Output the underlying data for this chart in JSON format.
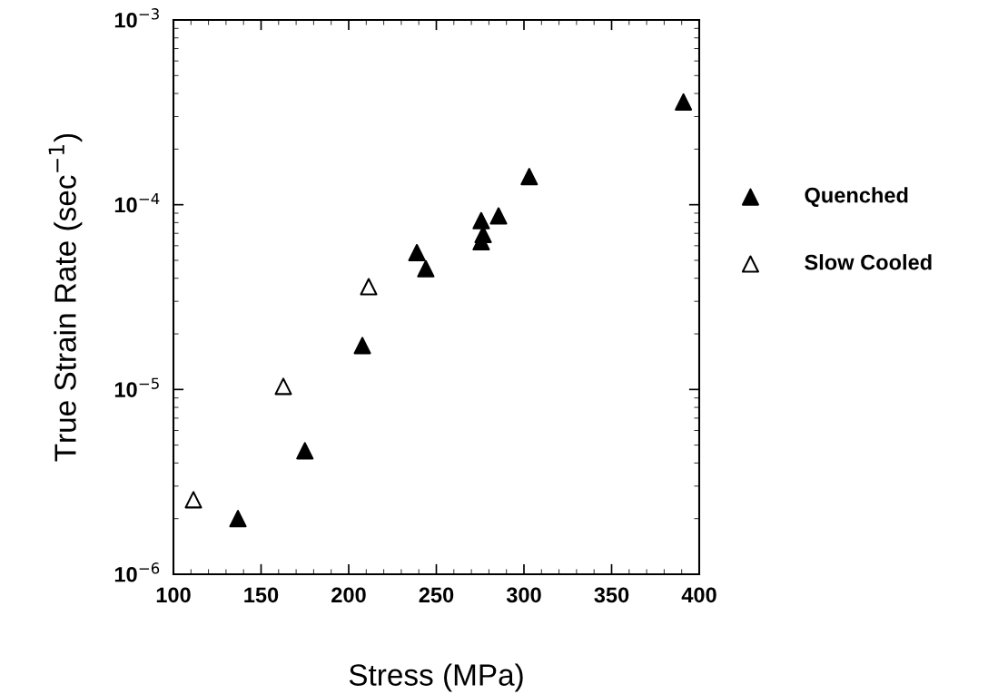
{
  "chart_data": {
    "type": "scatter",
    "xlabel": "Stress (MPa)",
    "ylabel": "True Strain Rate (sec$^{−1}$)",
    "log": "y",
    "xlim": [
      100,
      400
    ],
    "xticks": [
      100,
      150,
      200,
      250,
      300,
      350,
      400
    ],
    "ylim": [
      1e-06,
      0.001
    ],
    "yticks": [
      {
        "value": 1e-06,
        "label": "10$^{−6}$"
      },
      {
        "value": 1e-05,
        "label": "10$^{−5}$"
      },
      {
        "value": 0.0001,
        "label": "10$^{−4}$"
      },
      {
        "value": 0.001,
        "label": "10$^{−3}$"
      }
    ],
    "marker": "triangle",
    "legend": "right",
    "grid": false,
    "series": [
      {
        "name": "Quenched",
        "color": "#000000",
        "x": [
          391,
          303,
          285.5,
          275.6,
          276.7,
          275.6,
          238.9,
          244,
          207.8,
          175,
          136.8
        ],
        "values": [
          0.00036,
          0.000142,
          8.7e-05,
          8.2e-05,
          6.9e-05,
          6.3e-05,
          5.5e-05,
          4.5e-05,
          1.73e-05,
          4.66e-06,
          2e-06
        ]
      },
      {
        "name": "Slow Cooled",
        "color": "#ffffff",
        "x": [
          211.4,
          162.7,
          111.4
        ],
        "values": [
          3.6e-05,
          1.04e-05,
          2.53e-06
        ]
      }
    ]
  }
}
